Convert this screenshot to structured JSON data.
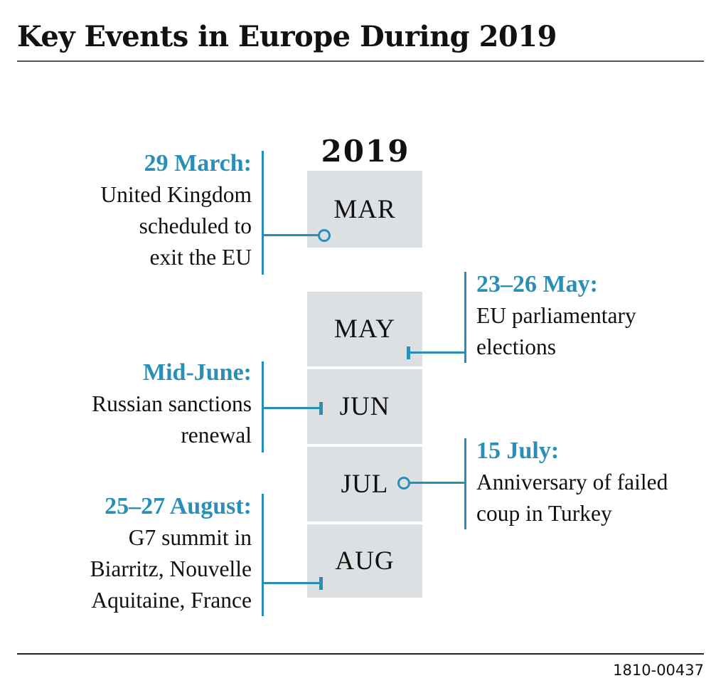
{
  "title": "Key Events in Europe During 2019",
  "year": "2019",
  "months": [
    "MAR",
    "MAY",
    "JUN",
    "JUL",
    "AUG"
  ],
  "events": [
    {
      "date": "29 March:",
      "lines": [
        "United Kingdom",
        "scheduled to",
        "exit the EU"
      ]
    },
    {
      "date": "23–26 May:",
      "lines": [
        "EU parliamentary",
        "elections"
      ]
    },
    {
      "date": "Mid-June:",
      "lines": [
        "Russian sanctions",
        "renewal"
      ]
    },
    {
      "date": "15 July:",
      "lines": [
        "Anniversary of failed",
        "coup in Turkey"
      ]
    },
    {
      "date": "25–27 August:",
      "lines": [
        "G7 summit in",
        "Biarritz, Nouvelle",
        "Aquitaine, France"
      ]
    }
  ],
  "code": "1810-00437",
  "colors": {
    "accent": "#2a8fb8",
    "month_box": "#dde0e2",
    "text": "#111111"
  }
}
